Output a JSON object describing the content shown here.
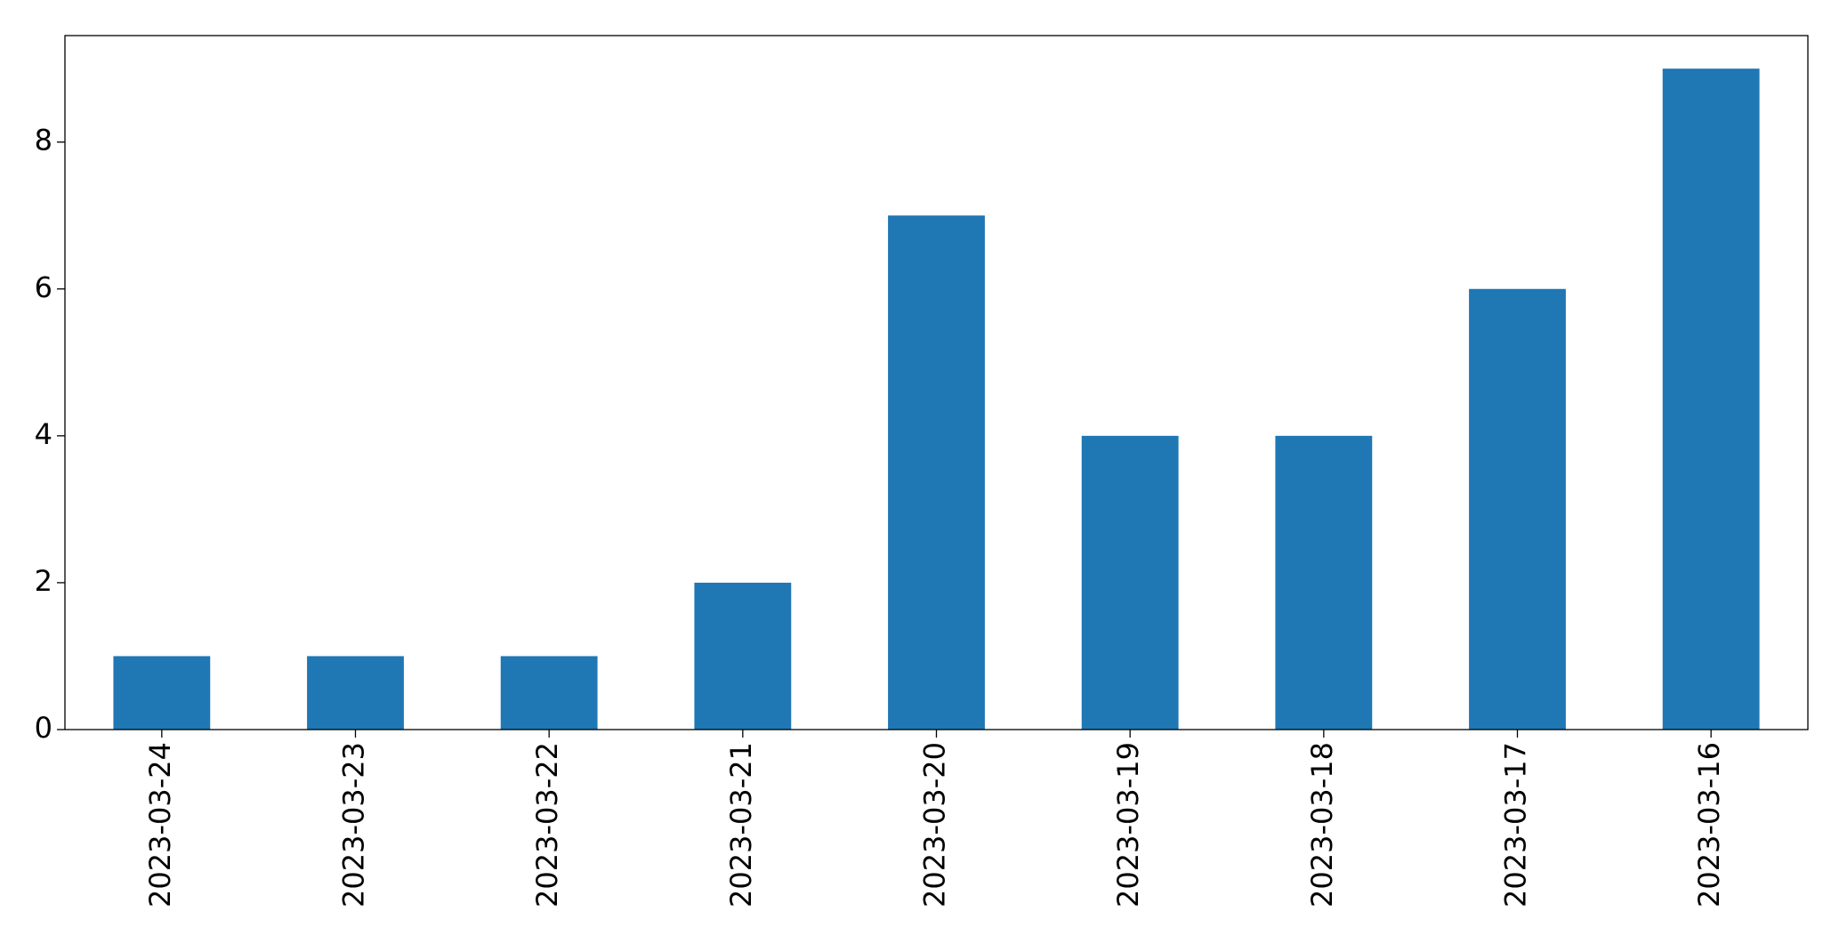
{
  "chart_data": {
    "type": "bar",
    "categories": [
      "2023-03-24",
      "2023-03-23",
      "2023-03-22",
      "2023-03-21",
      "2023-03-20",
      "2023-03-19",
      "2023-03-18",
      "2023-03-17",
      "2023-03-16"
    ],
    "values": [
      1,
      1,
      1,
      2,
      7,
      4,
      4,
      6,
      9
    ],
    "color": "#1f77b4",
    "ylim": [
      0,
      9.45
    ],
    "yticks": [
      0,
      2,
      4,
      6,
      8
    ],
    "grid": false
  }
}
